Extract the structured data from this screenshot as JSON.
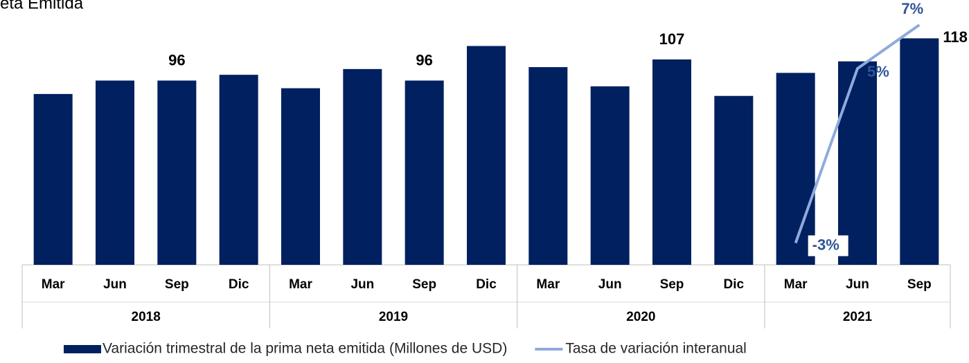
{
  "chart_data": {
    "type": "bar",
    "title": "eta Emitida",
    "categories": [
      "Mar",
      "Jun",
      "Sep",
      "Dic",
      "Mar",
      "Jun",
      "Sep",
      "Dic",
      "Mar",
      "Jun",
      "Sep",
      "Dic",
      "Mar",
      "Jun",
      "Sep"
    ],
    "x_groups": [
      {
        "label": "2018",
        "size": 4
      },
      {
        "label": "2019",
        "size": 4
      },
      {
        "label": "2020",
        "size": 4
      },
      {
        "label": "2021",
        "size": 3
      }
    ],
    "series": [
      {
        "name": "Variación trimestral de la prima neta emitida (Millones de USD)",
        "color": "#002060",
        "values": [
          89,
          96,
          96,
          99,
          92,
          102,
          96,
          114,
          103,
          93,
          107,
          88,
          100,
          106,
          118
        ],
        "value_labels": [
          null,
          null,
          "96",
          null,
          null,
          null,
          "96",
          null,
          null,
          null,
          "107",
          null,
          null,
          null,
          "118"
        ]
      },
      {
        "name": "Tasa de variación interanual",
        "color": "#8faadc",
        "type": "line",
        "axis": "y2",
        "values": [
          null,
          null,
          null,
          null,
          null,
          null,
          null,
          null,
          null,
          null,
          null,
          null,
          -3,
          5,
          7
        ],
        "value_labels": [
          null,
          null,
          null,
          null,
          null,
          null,
          null,
          null,
          null,
          null,
          null,
          null,
          "-3%",
          "5%",
          "7%"
        ]
      }
    ],
    "ylim": [
      0,
      125
    ],
    "y2lim": [
      -4,
      7
    ],
    "grid": false
  }
}
